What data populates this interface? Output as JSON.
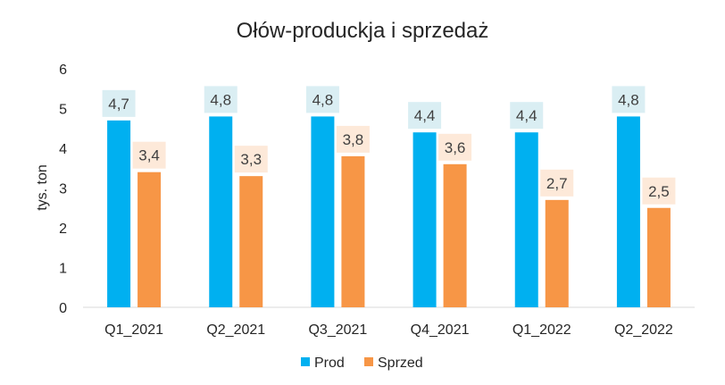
{
  "chart_data": {
    "type": "bar",
    "title": "Ołów-produckja  i sprzedaż",
    "xlabel": "",
    "ylabel": "tys. ton",
    "categories": [
      "Q1_2021",
      "Q2_2021",
      "Q3_2021",
      "Q4_2021",
      "Q1_2022",
      "Q2_2022"
    ],
    "series": [
      {
        "name": "Prod",
        "color": "#00B0F0",
        "label_bg": "#DAEEF3",
        "values": [
          4.7,
          4.8,
          4.8,
          4.4,
          4.4,
          4.8
        ],
        "labels": [
          "4,7",
          "4,8",
          "4,8",
          "4,4",
          "4,4",
          "4,8"
        ]
      },
      {
        "name": "Sprzed",
        "color": "#F79646",
        "label_bg": "#FDE9D9",
        "values": [
          3.4,
          3.3,
          3.8,
          3.6,
          2.7,
          2.5
        ],
        "labels": [
          "3,4",
          "3,3",
          "3,8",
          "3,6",
          "2,7",
          "2,5"
        ]
      }
    ],
    "ylim": [
      0,
      6
    ],
    "yticks": [
      0,
      1,
      2,
      3,
      4,
      5,
      6
    ],
    "grid": false,
    "legend": "bottom"
  }
}
